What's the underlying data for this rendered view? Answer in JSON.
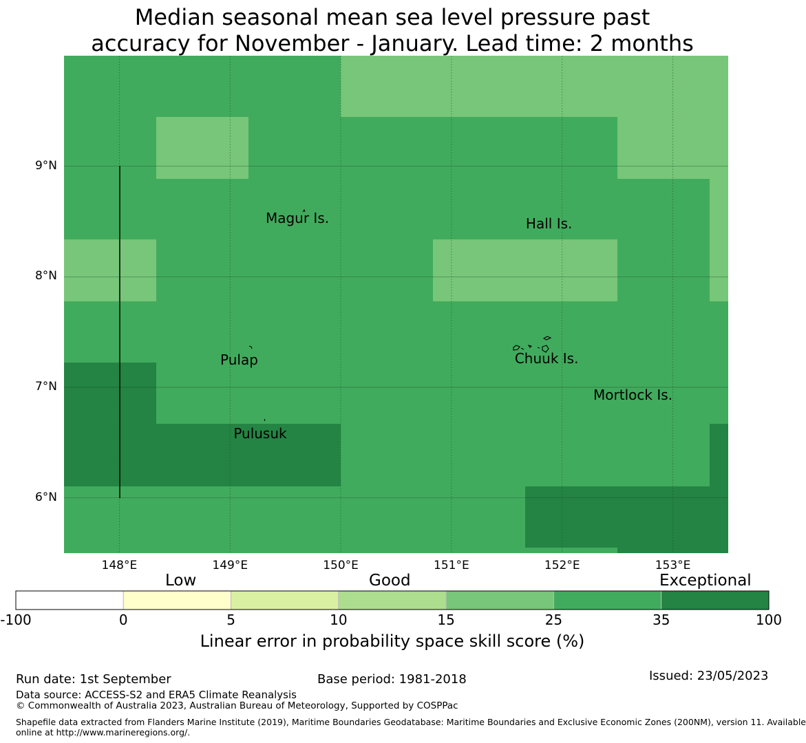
{
  "title_line1": "Median seasonal mean sea level pressure past",
  "title_line2": "accuracy for November - January. Lead time: 2 months",
  "map": {
    "lon_range": [
      147.5,
      153.5
    ],
    "lat_range": [
      5.5,
      10.0
    ],
    "lon_ticks": [
      148,
      149,
      150,
      151,
      152,
      153
    ],
    "lon_tick_labels": [
      "148°E",
      "149°E",
      "150°E",
      "151°E",
      "152°E",
      "153°E"
    ],
    "lat_ticks": [
      9,
      8,
      7,
      6
    ],
    "lat_tick_labels": [
      "9°N",
      "8°N",
      "7°N",
      "6°N"
    ],
    "places": [
      {
        "name": "Magur Is.",
        "lon": 149.62,
        "lat": 8.53
      },
      {
        "name": "Hall Is.",
        "lon": 151.97,
        "lat": 8.48
      },
      {
        "name": "Pulap",
        "lon": 149.21,
        "lat": 7.25
      },
      {
        "name": "Chuuk Is.",
        "lon": 151.87,
        "lat": 7.26
      },
      {
        "name": "Mortlock Is.",
        "lon": 152.58,
        "lat": 6.93
      },
      {
        "name": "Pulusuk",
        "lon": 149.33,
        "lat": 6.58
      }
    ]
  },
  "colorbar": {
    "category_labels": [
      "Low",
      "Good",
      "Exceptional"
    ],
    "ticks": [
      "-100",
      "0",
      "5",
      "10",
      "15",
      "25",
      "35",
      "100"
    ],
    "colors": [
      "#ffffff",
      "#ffffcc",
      "#d9f0a3",
      "#addd8e",
      "#78c679",
      "#41ab5d",
      "#238443"
    ],
    "title": "Linear error in probability space skill score (%)"
  },
  "footer": {
    "run_date": "Run date: 1st September",
    "base_period": "Base period: 1981-2018",
    "issued": "Issued: 23/05/2023",
    "data_source": "Data source: ACCESS-S2 and ERA5 Climate Reanalysis",
    "copyright": "© Commonwealth of Australia 2023, Australian Bureau of Meteorology, Supported by COSPPac",
    "shapefile_line1": "Shapefile data extracted from Flanders Marine Institute (2019), Maritime Boundaries Geodatabase: Maritime Boundaries and Exclusive Economic Zones (200NM), version 11. Available",
    "shapefile_line2": "online at http://www.marineregions.org/."
  }
}
